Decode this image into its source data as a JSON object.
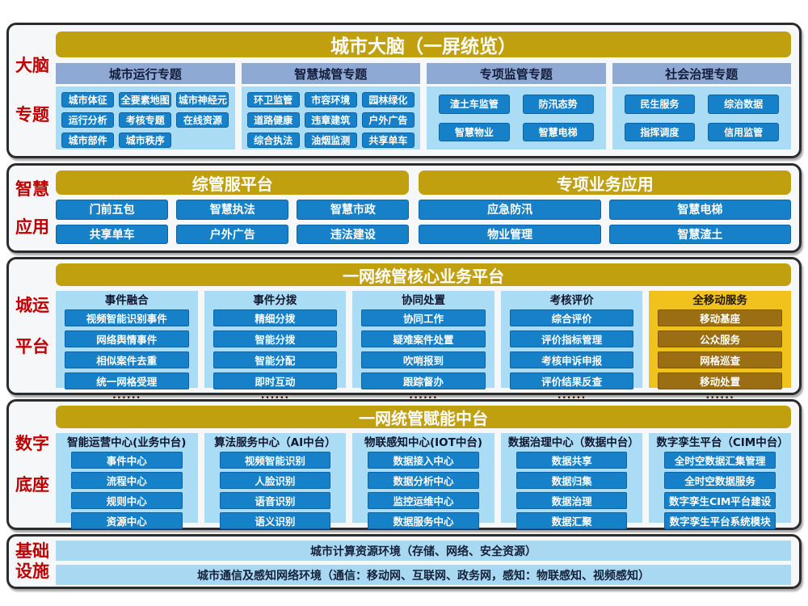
{
  "colors": {
    "gold_header": "#c0a00e",
    "button_blue": "#1680c9",
    "panel_light_blue": "#aadcf5",
    "band_slate_blue": "#8fa9d5",
    "gold_panel": "#f2c21c",
    "button_brown": "#9c6e13",
    "label_red": "#c00000"
  },
  "sections": [
    {
      "id": "brain-topics",
      "label_lines": [
        "大脑",
        "专题"
      ],
      "header": "城市大脑（一屏统览）",
      "groups": [
        {
          "title": "城市运行专题",
          "items": [
            "城市体征",
            "全要素地图",
            "城市神经元",
            "运行分析",
            "考核专题",
            "在线资源",
            "城市部件",
            "城市秩序"
          ]
        },
        {
          "title": "智慧城管专题",
          "items": [
            "环卫监管",
            "市容环境",
            "园林绿化",
            "道路健康",
            "违章建筑",
            "户外广告",
            "综合执法",
            "油烟监测",
            "共享单车"
          ]
        },
        {
          "title": "专项监管专题",
          "items": [
            "渣土车监管",
            "防汛态势",
            "智慧物业",
            "智慧电梯"
          ]
        },
        {
          "title": "社会治理专题",
          "items": [
            "民生服务",
            "综治数据",
            "指挥调度",
            "信用监管"
          ]
        }
      ]
    },
    {
      "id": "smart-applications",
      "label_lines": [
        "智慧",
        "应用"
      ],
      "platforms": [
        {
          "title": "综管服平台",
          "items": [
            "门前五包",
            "智慧执法",
            "智慧市政",
            "共享单车",
            "户外广告",
            "违法建设"
          ]
        },
        {
          "title": "专项业务应用",
          "items": [
            "应急防汛",
            "智慧电梯",
            "物业管理",
            "智慧渣土"
          ]
        }
      ]
    },
    {
      "id": "core-platform",
      "label_lines": [
        "城运",
        "平台"
      ],
      "header": "一网统管核心业务平台",
      "columns": [
        {
          "title": "事件融合",
          "items": [
            "视频智能识别事件",
            "网络舆情事件",
            "相似案件去重",
            "统一网格受理"
          ],
          "more": "......"
        },
        {
          "title": "事件分拨",
          "items": [
            "精细分拨",
            "智能分拨",
            "智能分配",
            "即时互动"
          ],
          "more": "......"
        },
        {
          "title": "协同处置",
          "items": [
            "协同工作",
            "疑难案件处置",
            "吹哨报到",
            "跟踪督办"
          ],
          "more": "......"
        },
        {
          "title": "考核评价",
          "items": [
            "综合评价",
            "评价指标管理",
            "考核申诉申报",
            "评价结果反查"
          ],
          "more": "......"
        },
        {
          "title": "全移动服务",
          "items": [
            "移动基座",
            "公众服务",
            "网格巡查",
            "移动处置"
          ],
          "more": "......"
        }
      ]
    },
    {
      "id": "digital-base",
      "label_lines": [
        "数字",
        "底座"
      ],
      "header": "一网统管赋能中台",
      "columns": [
        {
          "title": "智能运营中心(业务中台)",
          "items": [
            "事件中心",
            "流程中心",
            "规则中心",
            "资源中心"
          ]
        },
        {
          "title": "算法服务中心（AI中台）",
          "items": [
            "视频智能识别",
            "人脸识别",
            "语音识别",
            "语义识别"
          ]
        },
        {
          "title": "物联感知中心(IOT中台)",
          "items": [
            "数据接入中心",
            "数据分析中心",
            "监控运维中心",
            "数据服务中心"
          ]
        },
        {
          "title": "数据治理中心（数据中台）",
          "items": [
            "数据共享",
            "数据归集",
            "数据治理",
            "数据汇聚"
          ]
        },
        {
          "title": "数字孪生平台（CIM中台）",
          "items": [
            "全时空数据汇集管理",
            "全时空数据服务",
            "数字孪生CIM平台建设",
            "数字孪生平台系统模块"
          ]
        }
      ]
    },
    {
      "id": "infrastructure",
      "label_lines": [
        "基础",
        "设施"
      ],
      "bars": [
        "城市计算资源环境（存储、网络、安全资源）",
        "城市通信及感知网络环境（通信：移动网、互联网、政务网，感知：物联感知、视频感知）"
      ]
    }
  ]
}
